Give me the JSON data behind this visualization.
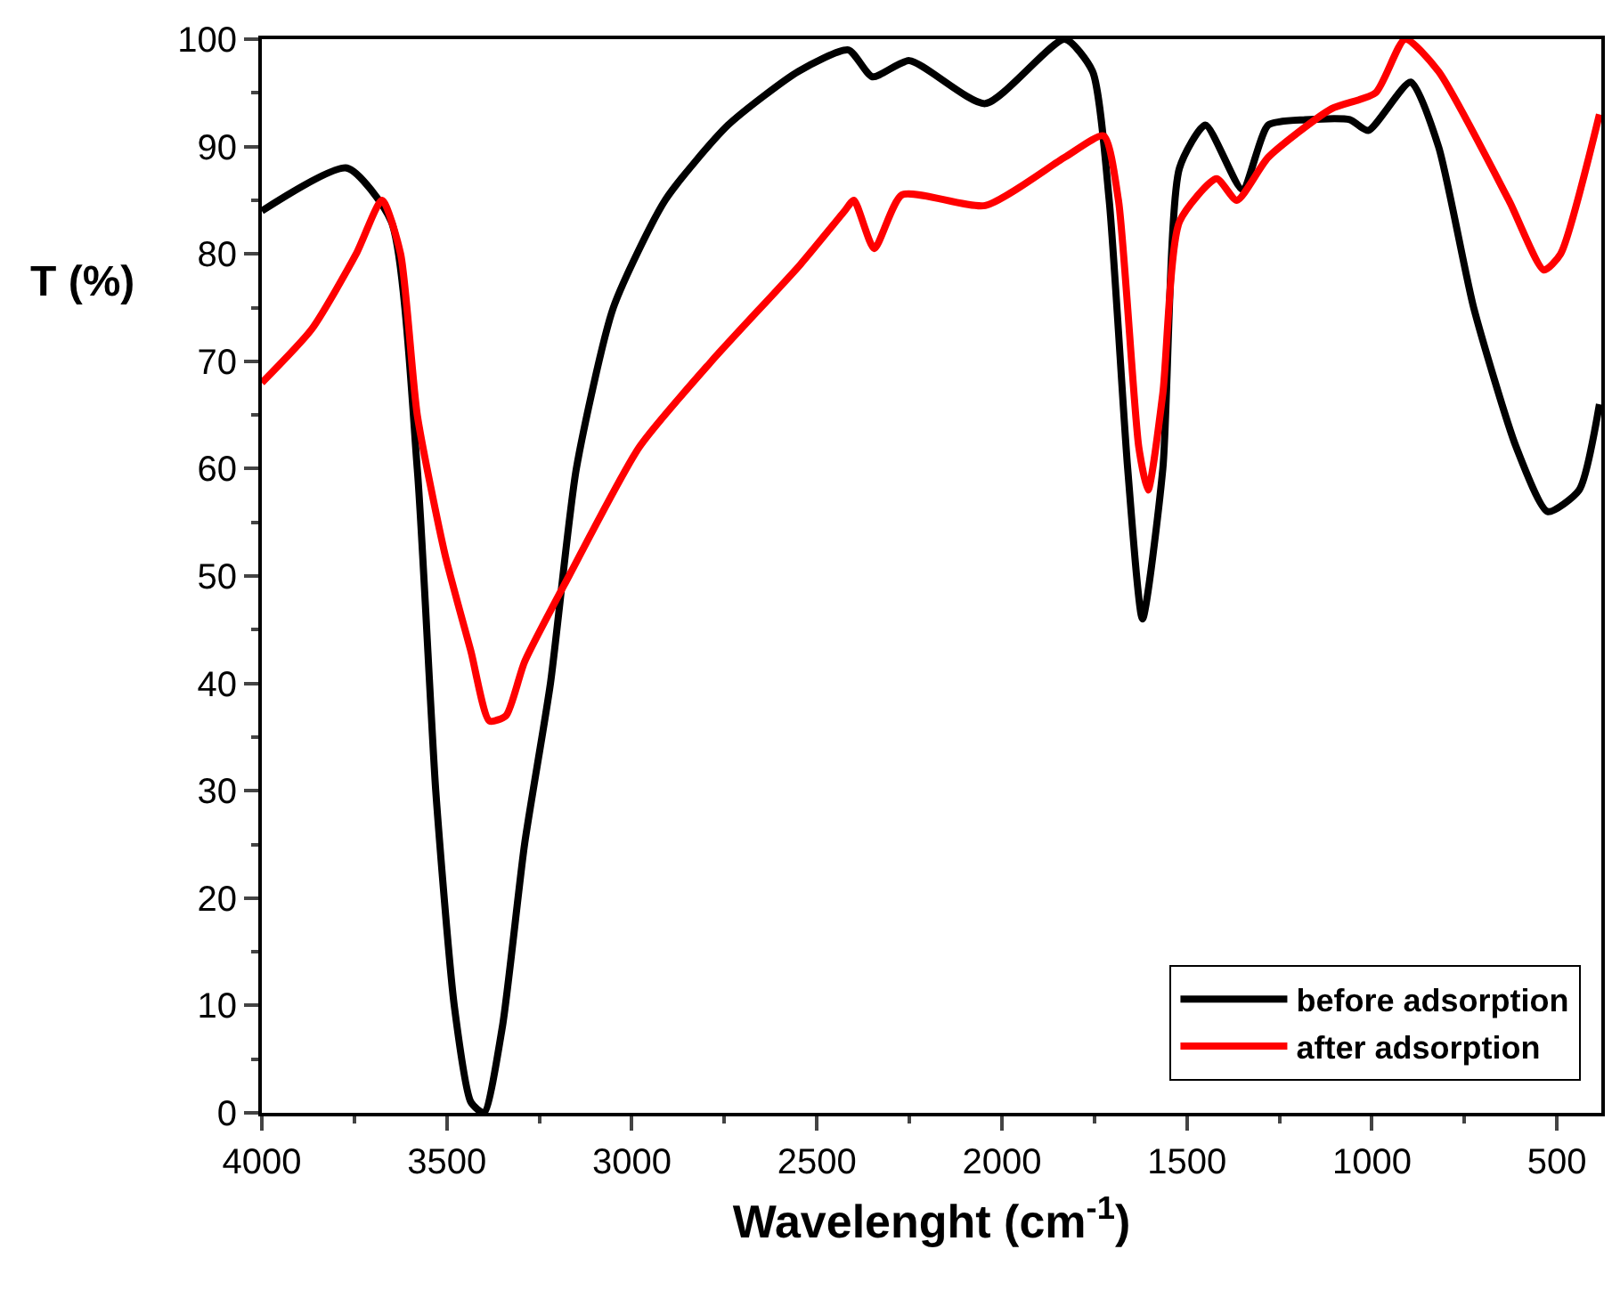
{
  "chart_data": {
    "type": "line",
    "xlabel": "Wavelenght (cm$^{-1}$)",
    "ylabel": "T (%)",
    "xlim": [
      4000,
      380
    ],
    "xticks": [
      4000,
      3500,
      3000,
      2500,
      2000,
      1500,
      1000,
      500
    ],
    "ylim": [
      0,
      100
    ],
    "yticks": [
      0,
      10,
      20,
      30,
      40,
      50,
      60,
      70,
      80,
      90,
      100
    ],
    "legend": "bottom right",
    "marker": "none",
    "line_style": "solid",
    "series": [
      {
        "name": "before adsorption",
        "color": "#000000",
        "x": [
          4000,
          3770,
          3650,
          3580,
          3530,
          3480,
          3435,
          3400,
          3350,
          3290,
          3220,
          3150,
          3050,
          2910,
          2740,
          2550,
          2415,
          2350,
          2250,
          2045,
          1830,
          1755,
          1710,
          1660,
          1620,
          1565,
          1520,
          1450,
          1350,
          1280,
          1180,
          1060,
          1010,
          895,
          820,
          725,
          610,
          525,
          440,
          385
        ],
        "values": [
          84,
          88,
          83,
          60,
          30,
          10,
          1,
          0,
          8,
          25,
          40,
          60,
          75,
          85,
          92,
          97,
          99,
          96.5,
          98,
          94,
          100,
          97,
          85,
          60,
          46,
          60,
          88,
          92,
          86,
          92,
          92.5,
          92.5,
          91.5,
          96,
          90,
          75,
          62,
          56,
          58,
          66
        ]
      },
      {
        "name": "after adsorption",
        "color": "#ff0000",
        "x": [
          4000,
          3865,
          3745,
          3675,
          3625,
          3580,
          3505,
          3435,
          3385,
          3340,
          3290,
          3170,
          2980,
          2785,
          2545,
          2425,
          2400,
          2345,
          2270,
          2045,
          1830,
          1725,
          1685,
          1630,
          1605,
          1565,
          1520,
          1420,
          1365,
          1280,
          1110,
          990,
          910,
          820,
          630,
          535,
          490,
          385
        ],
        "values": [
          68,
          73,
          80,
          85,
          80,
          65,
          52,
          43,
          36.5,
          37,
          42,
          50,
          62,
          70,
          79,
          84,
          85,
          80.5,
          85.5,
          84.5,
          89,
          91,
          85,
          62,
          58,
          67,
          83,
          87,
          85,
          89,
          93.5,
          95,
          100,
          97,
          85,
          78.5,
          80,
          93
        ]
      }
    ]
  }
}
